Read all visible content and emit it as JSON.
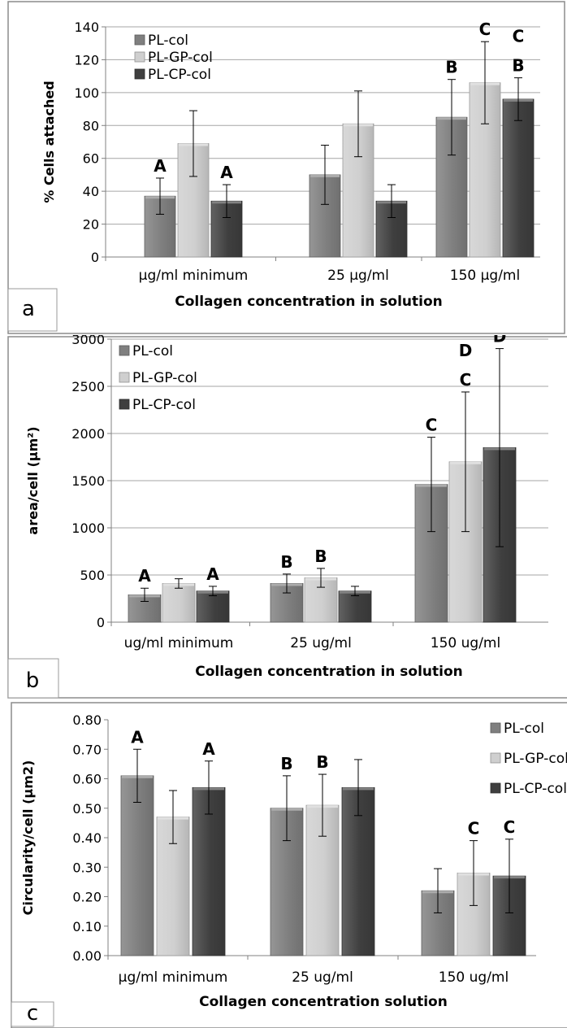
{
  "colors": {
    "PL-col": "#7f7f7f",
    "PL-GP-col": "#cfcfcf",
    "PL-CP-col": "#3f3f3f"
  },
  "chart_data": [
    {
      "panel_label": "a",
      "type": "bar",
      "categories": [
        "µg/ml minimum",
        "25 µg/ml",
        "150 µg/ml"
      ],
      "series": [
        {
          "name": "PL-col",
          "values": [
            37,
            50,
            85
          ],
          "errors": [
            11,
            18,
            23
          ],
          "labels": [
            "A",
            "",
            "B"
          ]
        },
        {
          "name": "PL-GP-col",
          "values": [
            69,
            81,
            106
          ],
          "errors": [
            20,
            20,
            25
          ],
          "labels": [
            "",
            "",
            "C"
          ]
        },
        {
          "name": "PL-CP-col",
          "values": [
            34,
            34,
            96
          ],
          "errors": [
            10,
            10,
            13
          ],
          "labels": [
            "A",
            "",
            "C\nB"
          ]
        }
      ],
      "title": "",
      "xlabel": "Collagen concentration in solution",
      "ylabel": "% Cells attached",
      "ylim": [
        0,
        140
      ],
      "yticks": [
        "0",
        "20",
        "40",
        "60",
        "80",
        "100",
        "120",
        "140"
      ],
      "legend": "top-left",
      "grid": true
    },
    {
      "panel_label": "b",
      "type": "bar",
      "categories": [
        "ug/ml minimum",
        "25 ug/ml",
        "150 ug/ml"
      ],
      "series": [
        {
          "name": "PL-col",
          "values": [
            290,
            410,
            1460
          ],
          "errors": [
            70,
            100,
            500
          ],
          "labels": [
            "A",
            "B",
            "C"
          ]
        },
        {
          "name": "PL-GP-col",
          "values": [
            410,
            470,
            1700
          ],
          "errors": [
            50,
            100,
            740
          ],
          "labels": [
            "",
            "B",
            "D\nC"
          ]
        },
        {
          "name": "PL-CP-col",
          "values": [
            330,
            330,
            1850
          ],
          "errors": [
            50,
            50,
            1050
          ],
          "labels": [
            "A",
            "",
            "D"
          ]
        }
      ],
      "title": "",
      "xlabel": "Collagen  concentration in solution",
      "ylabel": "area/cell  (µm²)",
      "ylim": [
        0,
        3000
      ],
      "yticks": [
        "0",
        "500",
        "1000",
        "1500",
        "2000",
        "2500",
        "3000"
      ],
      "legend": "top-left",
      "grid": true
    },
    {
      "panel_label": "c",
      "type": "bar",
      "categories": [
        "µg/ml minimum",
        "25 ug/ml",
        "150 ug/ml"
      ],
      "series": [
        {
          "name": "PL-col",
          "values": [
            0.61,
            0.5,
            0.22
          ],
          "errors": [
            0.09,
            0.11,
            0.075
          ],
          "labels": [
            "A",
            "B",
            ""
          ]
        },
        {
          "name": "PL-GP-col",
          "values": [
            0.47,
            0.51,
            0.28
          ],
          "errors": [
            0.09,
            0.105,
            0.11
          ],
          "labels": [
            "",
            "B",
            "C"
          ]
        },
        {
          "name": "PL-CP-col",
          "values": [
            0.57,
            0.57,
            0.27
          ],
          "errors": [
            0.09,
            0.095,
            0.125
          ],
          "labels": [
            "A",
            "",
            "C"
          ]
        }
      ],
      "title": "",
      "xlabel": "Collagen concentration solution",
      "ylabel": "Circularity/cell (µm2)",
      "ylim": [
        0,
        0.8
      ],
      "yticks": [
        "0.00",
        "0.10",
        "0.20",
        "0.30",
        "0.40",
        "0.50",
        "0.60",
        "0.70",
        "0.80"
      ],
      "legend": "right",
      "grid": false
    }
  ]
}
